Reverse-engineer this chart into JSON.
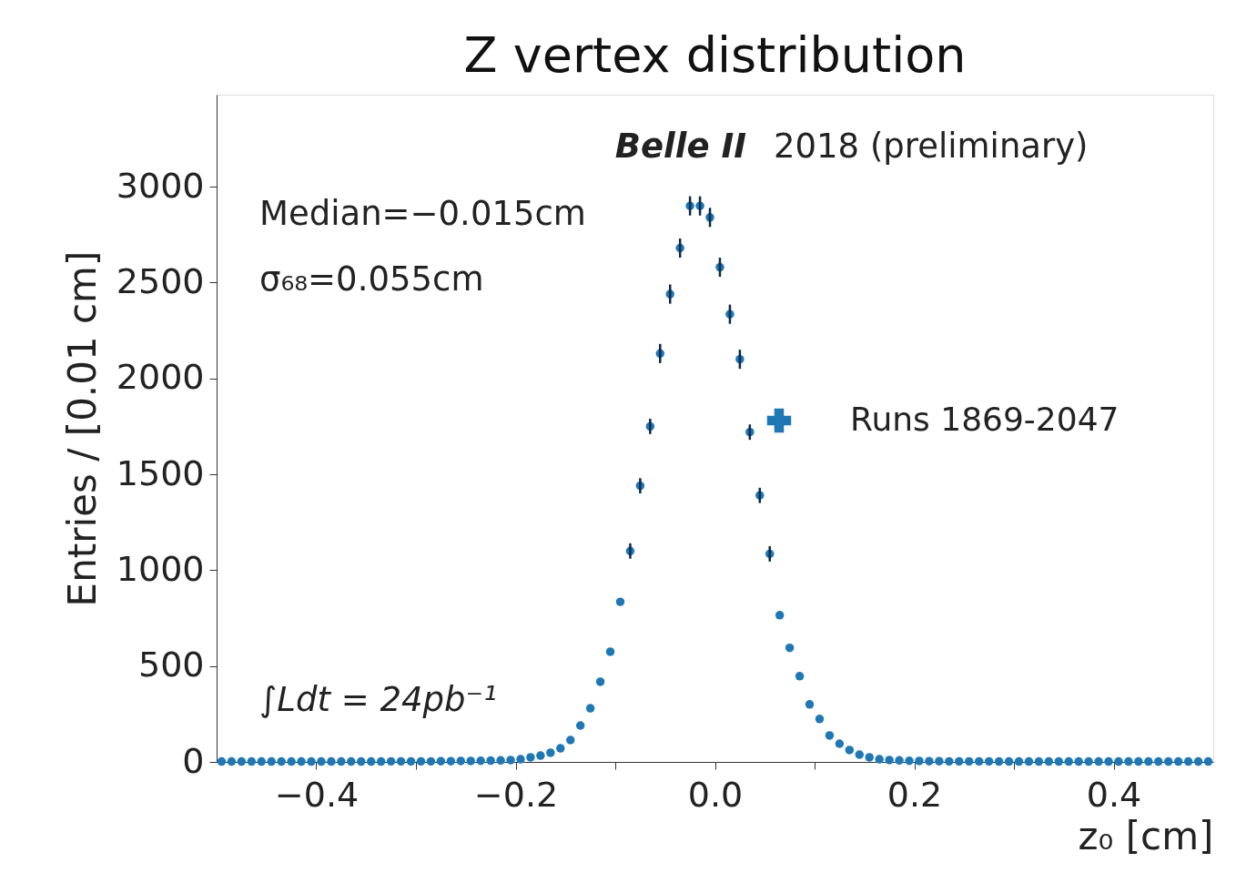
{
  "chart_data": {
    "type": "scatter",
    "title": "Z vertex distribution",
    "xlabel": "z₀ [cm]",
    "ylabel": "Entries / [0.01 cm]",
    "annotations": [
      "Belle II",
      "2018 (preliminary)",
      "Median=−0.015cm",
      "σ₆₈=0.055cm",
      "∫Ldt = 24pb⁻¹"
    ],
    "x": [
      -0.495,
      -0.485,
      -0.475,
      -0.465,
      -0.455,
      -0.445,
      -0.435,
      -0.425,
      -0.415,
      -0.405,
      -0.395,
      -0.385,
      -0.375,
      -0.365,
      -0.355,
      -0.345,
      -0.335,
      -0.325,
      -0.315,
      -0.305,
      -0.295,
      -0.285,
      -0.275,
      -0.265,
      -0.255,
      -0.245,
      -0.235,
      -0.225,
      -0.215,
      -0.205,
      -0.195,
      -0.185,
      -0.175,
      -0.165,
      -0.155,
      -0.145,
      -0.135,
      -0.125,
      -0.115,
      -0.105,
      -0.095,
      -0.085,
      -0.075,
      -0.065,
      -0.055,
      -0.045,
      -0.035,
      -0.025,
      -0.015,
      -0.005,
      0.005,
      0.015,
      0.025,
      0.035,
      0.045,
      0.055,
      0.065,
      0.075,
      0.085,
      0.095,
      0.105,
      0.115,
      0.125,
      0.135,
      0.145,
      0.155,
      0.165,
      0.175,
      0.185,
      0.195,
      0.205,
      0.215,
      0.225,
      0.235,
      0.245,
      0.255,
      0.265,
      0.275,
      0.285,
      0.295,
      0.305,
      0.315,
      0.325,
      0.335,
      0.345,
      0.355,
      0.365,
      0.375,
      0.385,
      0.395,
      0.405,
      0.415,
      0.425,
      0.435,
      0.445,
      0.455,
      0.465,
      0.475,
      0.485,
      0.495
    ],
    "series": [
      {
        "name": "Runs 1869-2047",
        "color": "#1f77b4",
        "values": [
          2,
          2,
          2,
          2,
          2,
          2,
          2,
          2,
          2,
          2,
          2,
          2,
          2,
          2,
          2,
          2,
          2,
          3,
          3,
          3,
          3,
          3,
          4,
          4,
          5,
          5,
          6,
          7,
          8,
          10,
          14,
          24,
          33,
          48,
          71,
          114,
          190,
          280,
          418,
          575,
          835,
          1100,
          1440,
          1750,
          2130,
          2440,
          2680,
          2900,
          2900,
          2840,
          2580,
          2335,
          2100,
          1720,
          1390,
          1085,
          765,
          595,
          447,
          300,
          224,
          138,
          95,
          62,
          38,
          24,
          14,
          10,
          8,
          6,
          5,
          4,
          4,
          3,
          3,
          3,
          3,
          3,
          2,
          2,
          2,
          2,
          2,
          2,
          2,
          2,
          2,
          2,
          2,
          2,
          2,
          2,
          2,
          2,
          2,
          2,
          2,
          2,
          2,
          2
        ],
        "errors": [
          null,
          null,
          null,
          null,
          null,
          null,
          null,
          null,
          null,
          null,
          null,
          null,
          null,
          null,
          null,
          null,
          null,
          null,
          null,
          null,
          null,
          null,
          null,
          null,
          null,
          null,
          null,
          null,
          null,
          null,
          null,
          null,
          null,
          null,
          null,
          null,
          null,
          null,
          null,
          null,
          null,
          40,
          40,
          40,
          50,
          50,
          50,
          50,
          50,
          50,
          50,
          50,
          50,
          40,
          40,
          40,
          null,
          null,
          null,
          null,
          null,
          null,
          null,
          null,
          null,
          null,
          null,
          null,
          null,
          null,
          null,
          null,
          null,
          null,
          null,
          null,
          null,
          null,
          null,
          null,
          null,
          null,
          null,
          null,
          null,
          null,
          null,
          null,
          null,
          null,
          null,
          null,
          null,
          null,
          null,
          null,
          null,
          null,
          null,
          null
        ]
      }
    ],
    "marker": "circle",
    "legend": "right",
    "grid": false,
    "xlim": [
      -0.5,
      0.5
    ],
    "xticks": [
      {
        "value": -0.4,
        "label": "−0.4"
      },
      {
        "value": -0.3,
        "label": null
      },
      {
        "value": -0.2,
        "label": "−0.2"
      },
      {
        "value": -0.1,
        "label": null
      },
      {
        "value": 0,
        "label": "0.0"
      },
      {
        "value": 0.1,
        "label": null
      },
      {
        "value": 0.2,
        "label": "0.2"
      },
      {
        "value": 0.3,
        "label": null
      },
      {
        "value": 0.4,
        "label": "0.4"
      }
    ],
    "ylim": [
      0,
      3480
    ],
    "yticks": [
      0,
      500,
      1000,
      1500,
      2000,
      2500,
      3000
    ]
  }
}
